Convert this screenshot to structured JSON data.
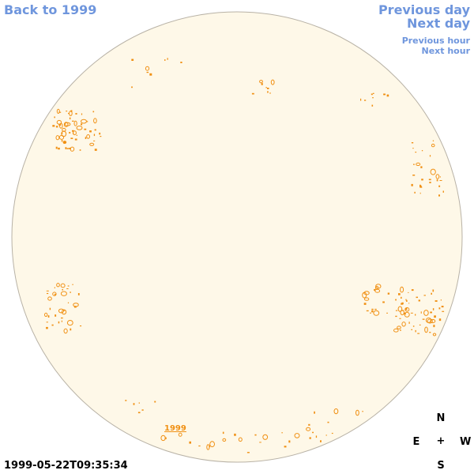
{
  "nav": {
    "back": "Back to 1999",
    "previous_day": "Previous day",
    "next_day": "Next day",
    "previous_hour": "Previous hour",
    "next_hour": "Next hour"
  },
  "compass": {
    "north": "N",
    "south": "S",
    "east": "E",
    "west": "W",
    "center": "+"
  },
  "map": {
    "year_label": "1999"
  },
  "timestamp": "1999-05-22T09:35:34",
  "colors": {
    "link": "#6f96dd",
    "disk_fill": "#fef8e8",
    "disk_border": "#b8b2a6",
    "feature": "#f09013"
  }
}
